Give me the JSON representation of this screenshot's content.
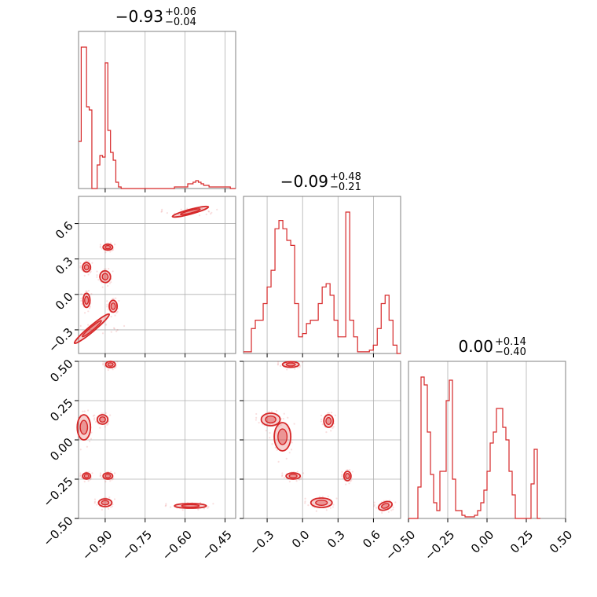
{
  "chart_data": {
    "type": "corner",
    "color": "#d62728",
    "grid": true,
    "parameters": [
      {
        "title_main": "−0.93",
        "title_sup": "+0.06",
        "title_sub": "−0.04",
        "range": [
          -1.0,
          -0.41
        ]
      },
      {
        "title_main": "−0.09",
        "title_sup": "+0.48",
        "title_sub": "−0.21",
        "range": [
          -0.5,
          0.83
        ]
      },
      {
        "title_main": "0.00",
        "title_sup": "+0.14",
        "title_sub": "−0.40",
        "range": [
          -0.5,
          0.5
        ]
      }
    ],
    "ticks": {
      "x0": {
        "values": [
          -0.9,
          -0.75,
          -0.6,
          -0.45
        ],
        "labels": [
          "−0.90",
          "−0.75",
          "−0.60",
          "−0.45"
        ]
      },
      "y1": {
        "values": [
          -0.3,
          0.0,
          0.3,
          0.6
        ],
        "labels": [
          "−0.3",
          "0.0",
          "0.3",
          "0.6"
        ]
      },
      "x1": {
        "values": [
          -0.3,
          0.0,
          0.3,
          0.6
        ],
        "labels": [
          "−0.3",
          "0.0",
          "0.3",
          "0.6"
        ]
      },
      "y2": {
        "values": [
          -0.5,
          -0.25,
          0.0,
          0.25,
          0.5
        ],
        "labels": [
          "−0.50",
          "−0.25",
          "0.00",
          "0.25",
          "0.50"
        ]
      },
      "x2": {
        "values": [
          -0.5,
          -0.25,
          0.0,
          0.25,
          0.5
        ],
        "labels": [
          "−0.50",
          "−0.25",
          "0.00",
          "0.25",
          "0.50"
        ]
      }
    },
    "histograms": [
      {
        "param": 0,
        "bin_width": 0.01,
        "start": -1.0,
        "heights": [
          0.3,
          0.9,
          0.9,
          0.52,
          0.5,
          0.0,
          0.0,
          0.15,
          0.21,
          0.2,
          0.8,
          0.37,
          0.23,
          0.18,
          0.04,
          0.01,
          0,
          0,
          0,
          0,
          0,
          0,
          0,
          0,
          0,
          0,
          0,
          0,
          0,
          0,
          0,
          0,
          0,
          0,
          0,
          0,
          0.01,
          0.01,
          0.01,
          0.01,
          0.01,
          0.03,
          0.03,
          0.04,
          0.05,
          0.04,
          0.03,
          0.02,
          0.02,
          0.01,
          0.01,
          0.01,
          0.01,
          0.01,
          0.01,
          0.01,
          0.01,
          0.0,
          0.0
        ]
      },
      {
        "param": 1,
        "bin_width": 0.0333,
        "start": -0.5,
        "heights": [
          0.01,
          0.01,
          0.15,
          0.2,
          0.2,
          0.3,
          0.4,
          0.5,
          0.75,
          0.8,
          0.75,
          0.68,
          0.65,
          0.3,
          0.1,
          0.12,
          0.18,
          0.2,
          0.2,
          0.3,
          0.4,
          0.42,
          0.35,
          0.2,
          0.1,
          0.1,
          0.85,
          0.2,
          0.1,
          0.01,
          0.01,
          0.01,
          0.02,
          0.05,
          0.15,
          0.3,
          0.35,
          0.2,
          0.05,
          0.0
        ]
      },
      {
        "param": 2,
        "bin_width": 0.02,
        "start": -0.5,
        "heights": [
          0.0,
          0.0,
          0.0,
          0.2,
          0.9,
          0.85,
          0.55,
          0.28,
          0.1,
          0.05,
          0.3,
          0.3,
          0.75,
          0.88,
          0.25,
          0.05,
          0.05,
          0.02,
          0.01,
          0.01,
          0.01,
          0.02,
          0.05,
          0.1,
          0.18,
          0.3,
          0.48,
          0.55,
          0.7,
          0.7,
          0.58,
          0.5,
          0.3,
          0.15,
          0.0,
          0.0,
          0.0,
          0.0,
          0.0,
          0.22,
          0.44,
          0.0
        ]
      }
    ],
    "contour_panels": [
      {
        "x_param": 0,
        "y_param": 1,
        "blobs": [
          {
            "cx": -0.58,
            "cy": 0.7,
            "rx": 0.07,
            "ry": 0.018,
            "angle": 15
          },
          {
            "cx": -0.89,
            "cy": 0.4,
            "rx": 0.018,
            "ry": 0.025,
            "angle": 0
          },
          {
            "cx": -0.97,
            "cy": 0.23,
            "rx": 0.015,
            "ry": 0.04,
            "angle": 0
          },
          {
            "cx": -0.9,
            "cy": 0.15,
            "rx": 0.02,
            "ry": 0.05,
            "angle": 10
          },
          {
            "cx": -0.97,
            "cy": -0.05,
            "rx": 0.013,
            "ry": 0.06,
            "angle": 0
          },
          {
            "cx": -0.87,
            "cy": -0.1,
            "rx": 0.015,
            "ry": 0.05,
            "angle": 0
          },
          {
            "cx": -0.95,
            "cy": -0.29,
            "rx": 0.085,
            "ry": 0.025,
            "angle": 40
          }
        ]
      },
      {
        "x_param": 0,
        "y_param": 2,
        "blobs": [
          {
            "cx": -0.88,
            "cy": 0.48,
            "rx": 0.018,
            "ry": 0.02,
            "angle": 0
          },
          {
            "cx": -0.98,
            "cy": 0.08,
            "rx": 0.025,
            "ry": 0.08,
            "angle": 0
          },
          {
            "cx": -0.91,
            "cy": 0.13,
            "rx": 0.02,
            "ry": 0.03,
            "angle": 0
          },
          {
            "cx": -0.97,
            "cy": -0.23,
            "rx": 0.015,
            "ry": 0.02,
            "angle": 0
          },
          {
            "cx": -0.89,
            "cy": -0.23,
            "rx": 0.018,
            "ry": 0.02,
            "angle": 0
          },
          {
            "cx": -0.9,
            "cy": -0.4,
            "rx": 0.025,
            "ry": 0.025,
            "angle": 0
          },
          {
            "cx": -0.58,
            "cy": -0.42,
            "rx": 0.06,
            "ry": 0.015,
            "angle": 0
          }
        ]
      },
      {
        "x_param": 1,
        "y_param": 2,
        "blobs": [
          {
            "cx": -0.1,
            "cy": 0.48,
            "rx": 0.07,
            "ry": 0.018,
            "angle": 0
          },
          {
            "cx": -0.27,
            "cy": 0.13,
            "rx": 0.08,
            "ry": 0.04,
            "angle": 0
          },
          {
            "cx": -0.17,
            "cy": 0.02,
            "rx": 0.07,
            "ry": 0.09,
            "angle": 0
          },
          {
            "cx": 0.22,
            "cy": 0.12,
            "rx": 0.04,
            "ry": 0.04,
            "angle": 0
          },
          {
            "cx": -0.08,
            "cy": -0.23,
            "rx": 0.06,
            "ry": 0.02,
            "angle": 0
          },
          {
            "cx": 0.38,
            "cy": -0.23,
            "rx": 0.03,
            "ry": 0.03,
            "angle": 0
          },
          {
            "cx": 0.16,
            "cy": -0.4,
            "rx": 0.09,
            "ry": 0.03,
            "angle": 0
          },
          {
            "cx": 0.7,
            "cy": -0.42,
            "rx": 0.06,
            "ry": 0.025,
            "angle": 20
          }
        ]
      }
    ]
  }
}
